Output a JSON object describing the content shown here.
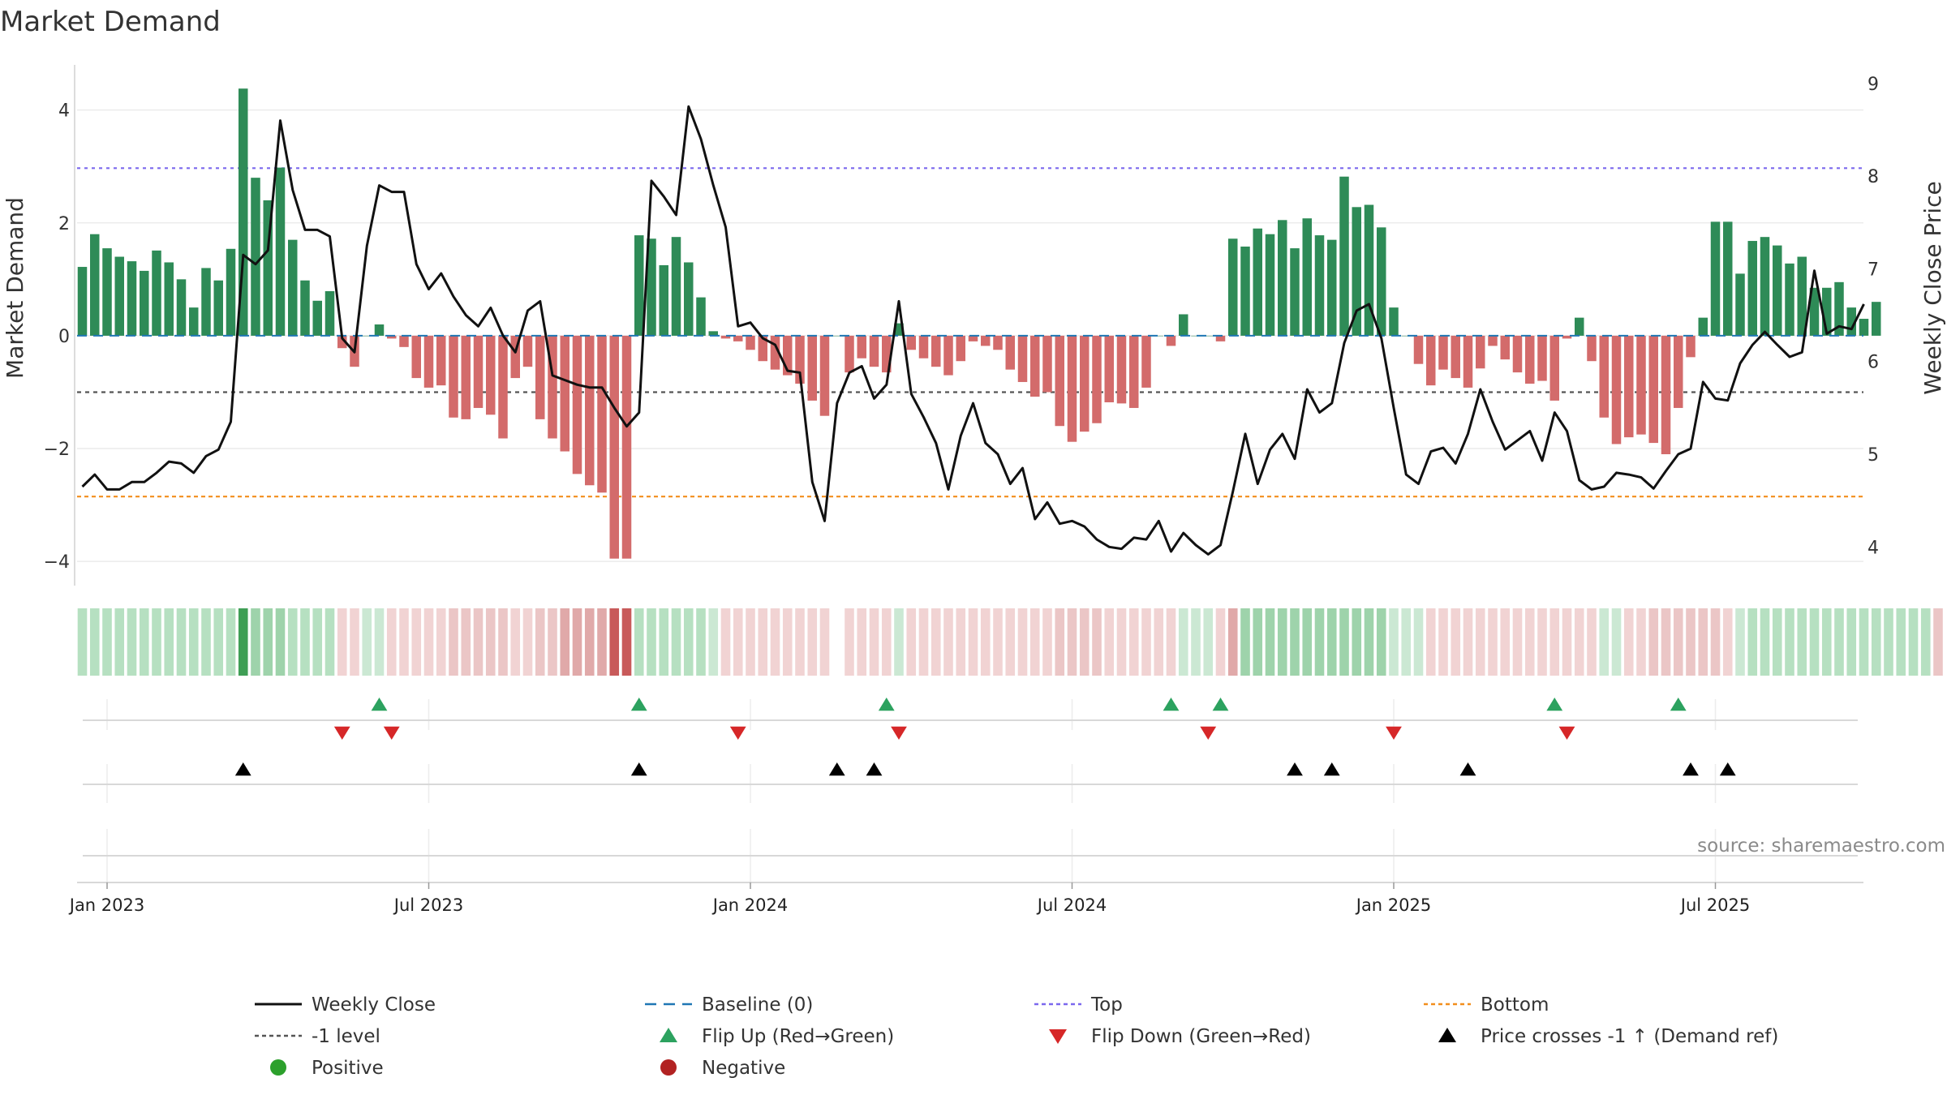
{
  "title": "Market Demand",
  "source": "source: sharemaestro.com",
  "colors": {
    "positive": "#2e8b57",
    "negative": "#d36b6b",
    "close": "#111111",
    "baseline": "#1f77b4",
    "top": "#7b68ee",
    "minus1": "#555555",
    "bottom": "#f28e1c",
    "flip_up": "#2ca25f",
    "flip_down": "#d62728",
    "cross": "#000000",
    "positive_dot": "#2ca02c",
    "negative_dot": "#b22222"
  },
  "chart_data": {
    "type": "bar",
    "title": "Market Demand",
    "ylabel_left": "Market Demand",
    "ylabel_right": "Weekly Close Price",
    "yticks_left": [
      "4",
      "2",
      "0",
      "−2",
      "−4"
    ],
    "yticks_right": [
      "9",
      "8",
      "7",
      "6",
      "5",
      "4"
    ],
    "ylim_left": [
      -4.4,
      4.8
    ],
    "ylim_right": [
      3.6,
      9.2
    ],
    "reference_lines": {
      "top": 2.97,
      "minus1": -1.0,
      "bottom": -2.85,
      "baseline": 0
    },
    "x_tick_labels": [
      "Jan 2023",
      "Jul 2023",
      "Jan 2024",
      "Jul 2024",
      "Jan 2025",
      "Jul 2025"
    ],
    "x_tick_weeks": [
      2,
      28,
      54,
      80,
      106,
      132
    ],
    "demand": [
      1.22,
      1.8,
      1.55,
      1.4,
      1.32,
      1.15,
      1.51,
      1.3,
      1.0,
      0.5,
      1.2,
      0.98,
      1.54,
      4.38,
      2.8,
      2.4,
      2.98,
      1.7,
      0.98,
      0.62,
      0.79,
      -0.22,
      -0.55,
      0.0,
      0.2,
      -0.05,
      -0.2,
      -0.75,
      -0.92,
      -0.88,
      -1.45,
      -1.48,
      -1.28,
      -1.4,
      -1.82,
      -0.75,
      -0.55,
      -1.48,
      -1.82,
      -2.05,
      -2.45,
      -2.65,
      -2.78,
      -3.95,
      -3.95,
      1.78,
      1.72,
      1.25,
      1.75,
      1.3,
      0.68,
      0.08,
      -0.05,
      -0.1,
      -0.25,
      -0.45,
      -0.6,
      -0.7,
      -0.85,
      -1.15,
      -1.42,
      0.0,
      -0.65,
      -0.4,
      -0.55,
      -0.65,
      0.22,
      -0.25,
      -0.4,
      -0.55,
      -0.7,
      -0.45,
      -0.1,
      -0.18,
      -0.25,
      -0.6,
      -0.82,
      -1.08,
      -1.0,
      -1.6,
      -1.88,
      -1.7,
      -1.55,
      -1.18,
      -1.2,
      -1.28,
      -0.92,
      0.0,
      -0.18,
      0.38,
      0.0,
      0.0,
      -0.1,
      1.72,
      1.58,
      1.9,
      1.8,
      2.05,
      1.55,
      2.08,
      1.78,
      1.7,
      2.82,
      2.28,
      2.32,
      1.92,
      0.5,
      0.0,
      -0.5,
      -0.88,
      -0.6,
      -0.75,
      -0.92,
      -0.58,
      -0.18,
      -0.42,
      -0.65,
      -0.85,
      -0.8,
      -1.15,
      -0.05,
      0.32,
      -0.45,
      -1.45,
      -1.92,
      -1.8,
      -1.75,
      -1.9,
      -2.1,
      -1.28,
      -0.38,
      0.32,
      2.02,
      2.02,
      1.1,
      1.68,
      1.75,
      1.6,
      1.28,
      1.4,
      0.85,
      0.85,
      0.95,
      0.5,
      0.3,
      0.6
    ],
    "weekly_close": [
      4.65,
      4.78,
      4.62,
      4.62,
      4.7,
      4.7,
      4.8,
      4.92,
      4.9,
      4.8,
      4.98,
      5.05,
      5.35,
      7.15,
      7.05,
      7.2,
      8.6,
      7.85,
      7.42,
      7.42,
      7.35,
      6.25,
      6.1,
      7.25,
      7.9,
      7.83,
      7.83,
      7.05,
      6.78,
      6.95,
      6.7,
      6.5,
      6.38,
      6.58,
      6.28,
      6.1,
      6.55,
      6.65,
      5.85,
      5.8,
      5.75,
      5.72,
      5.72,
      5.5,
      5.3,
      5.45,
      7.95,
      7.78,
      7.58,
      8.75,
      8.4,
      7.9,
      7.45,
      6.38,
      6.42,
      6.25,
      6.18,
      5.9,
      5.88,
      4.7,
      4.28,
      5.55,
      5.88,
      5.95,
      5.6,
      5.75,
      6.65,
      5.65,
      5.4,
      5.12,
      4.62,
      5.2,
      5.55,
      5.12,
      5.0,
      4.68,
      4.85,
      4.3,
      4.48,
      4.25,
      4.28,
      4.22,
      4.08,
      4.0,
      3.98,
      4.1,
      4.08,
      4.28,
      3.95,
      4.15,
      4.02,
      3.92,
      4.02,
      4.6,
      5.22,
      4.68,
      5.05,
      5.22,
      4.95,
      5.7,
      5.45,
      5.55,
      6.2,
      6.55,
      6.62,
      6.25,
      5.5,
      4.78,
      4.68,
      5.03,
      5.07,
      4.9,
      5.22,
      5.7,
      5.35,
      5.05,
      5.15,
      5.25,
      4.93,
      5.45,
      5.25,
      4.72,
      4.62,
      4.65,
      4.8,
      4.78,
      4.75,
      4.63,
      4.82,
      5.0,
      5.06,
      5.78,
      5.6,
      5.58,
      5.98,
      6.18,
      6.32,
      6.18,
      6.05,
      6.1,
      6.98,
      6.3,
      6.38,
      6.35,
      6.62
    ],
    "strip_levels": [
      2,
      2,
      2,
      2,
      2,
      2,
      2,
      2,
      2,
      2,
      2,
      2,
      2,
      4,
      3,
      3,
      3,
      2,
      2,
      2,
      2,
      1,
      1,
      1,
      1,
      1,
      1,
      1,
      1,
      1,
      2,
      2,
      2,
      2,
      2,
      1,
      1,
      2,
      2,
      3,
      3,
      3,
      3,
      4,
      4,
      2,
      2,
      2,
      2,
      2,
      2,
      1,
      1,
      1,
      1,
      1,
      1,
      1,
      1,
      1,
      1,
      0,
      1,
      1,
      1,
      1,
      1,
      1,
      1,
      1,
      1,
      1,
      1,
      1,
      1,
      1,
      1,
      1,
      1,
      2,
      2,
      2,
      2,
      1,
      1,
      1,
      1,
      1,
      1,
      1,
      1,
      1,
      1,
      3,
      3,
      3,
      3,
      3,
      3,
      3,
      3,
      3,
      3,
      3,
      3,
      3,
      1,
      1,
      1,
      1,
      1,
      1,
      1,
      1,
      1,
      1,
      1,
      1,
      1,
      1,
      1,
      1,
      1,
      1,
      1,
      1,
      1,
      2,
      2,
      2,
      2,
      2,
      2,
      1,
      1,
      2,
      2,
      2,
      2,
      2,
      2,
      2,
      2,
      2,
      2,
      2,
      2,
      2,
      2,
      2,
      2
    ],
    "strip_sign": [
      1,
      1,
      1,
      1,
      1,
      1,
      1,
      1,
      1,
      1,
      1,
      1,
      1,
      1,
      1,
      1,
      1,
      1,
      1,
      1,
      1,
      -1,
      -1,
      1,
      1,
      -1,
      -1,
      -1,
      -1,
      -1,
      -1,
      -1,
      -1,
      -1,
      -1,
      -1,
      -1,
      -1,
      -1,
      -1,
      -1,
      -1,
      -1,
      -1,
      -1,
      1,
      1,
      1,
      1,
      1,
      1,
      1,
      -1,
      -1,
      -1,
      -1,
      -1,
      -1,
      -1,
      -1,
      -1,
      0,
      -1,
      -1,
      -1,
      -1,
      1,
      -1,
      -1,
      -1,
      -1,
      -1,
      -1,
      -1,
      -1,
      -1,
      -1,
      -1,
      -1,
      -1,
      -1,
      -1,
      -1,
      -1,
      -1,
      -1,
      -1,
      -1,
      -1,
      1,
      1,
      1,
      -1,
      -1,
      1,
      1,
      1,
      1,
      1,
      1,
      1,
      1,
      1,
      1,
      1,
      1,
      1,
      1,
      1,
      -1,
      -1,
      -1,
      -1,
      -1,
      -1,
      -1,
      -1,
      -1,
      -1,
      -1,
      -1,
      -1,
      -1,
      1,
      1,
      -1,
      -1,
      -1,
      -1,
      -1,
      -1,
      -1,
      -1,
      -1,
      1,
      1,
      1,
      1,
      1,
      1,
      1,
      1,
      1,
      1,
      1,
      1,
      1,
      1,
      1,
      1
    ],
    "flip_up_weeks": [
      24,
      45,
      65,
      88,
      92,
      119,
      129
    ],
    "flip_down_weeks": [
      21,
      25,
      53,
      66,
      91,
      106,
      120
    ],
    "price_cross_weeks": [
      13,
      45,
      61,
      64,
      98,
      101,
      112,
      130,
      133
    ]
  },
  "legend": [
    {
      "key": "close",
      "marker": "line-solid",
      "label": "Weekly Close"
    },
    {
      "key": "baseline",
      "marker": "line-dashed",
      "label": "Baseline (0)"
    },
    {
      "key": "top",
      "marker": "line-dotted",
      "label": "Top"
    },
    {
      "key": "bottom",
      "marker": "line-dotted",
      "label": "Bottom"
    },
    {
      "key": "minus1",
      "marker": "line-dotted",
      "label": "-1 level"
    },
    {
      "key": "flip_up",
      "marker": "triangle-up",
      "label": "Flip Up (Red→Green)"
    },
    {
      "key": "flip_down",
      "marker": "triangle-down",
      "label": "Flip Down (Green→Red)"
    },
    {
      "key": "cross",
      "marker": "triangle-up",
      "label": "Price crosses -1 ↑ (Demand ref)"
    },
    {
      "key": "positive_dot",
      "marker": "circle",
      "label": "Positive"
    },
    {
      "key": "negative_dot",
      "marker": "circle",
      "label": "Negative"
    }
  ]
}
